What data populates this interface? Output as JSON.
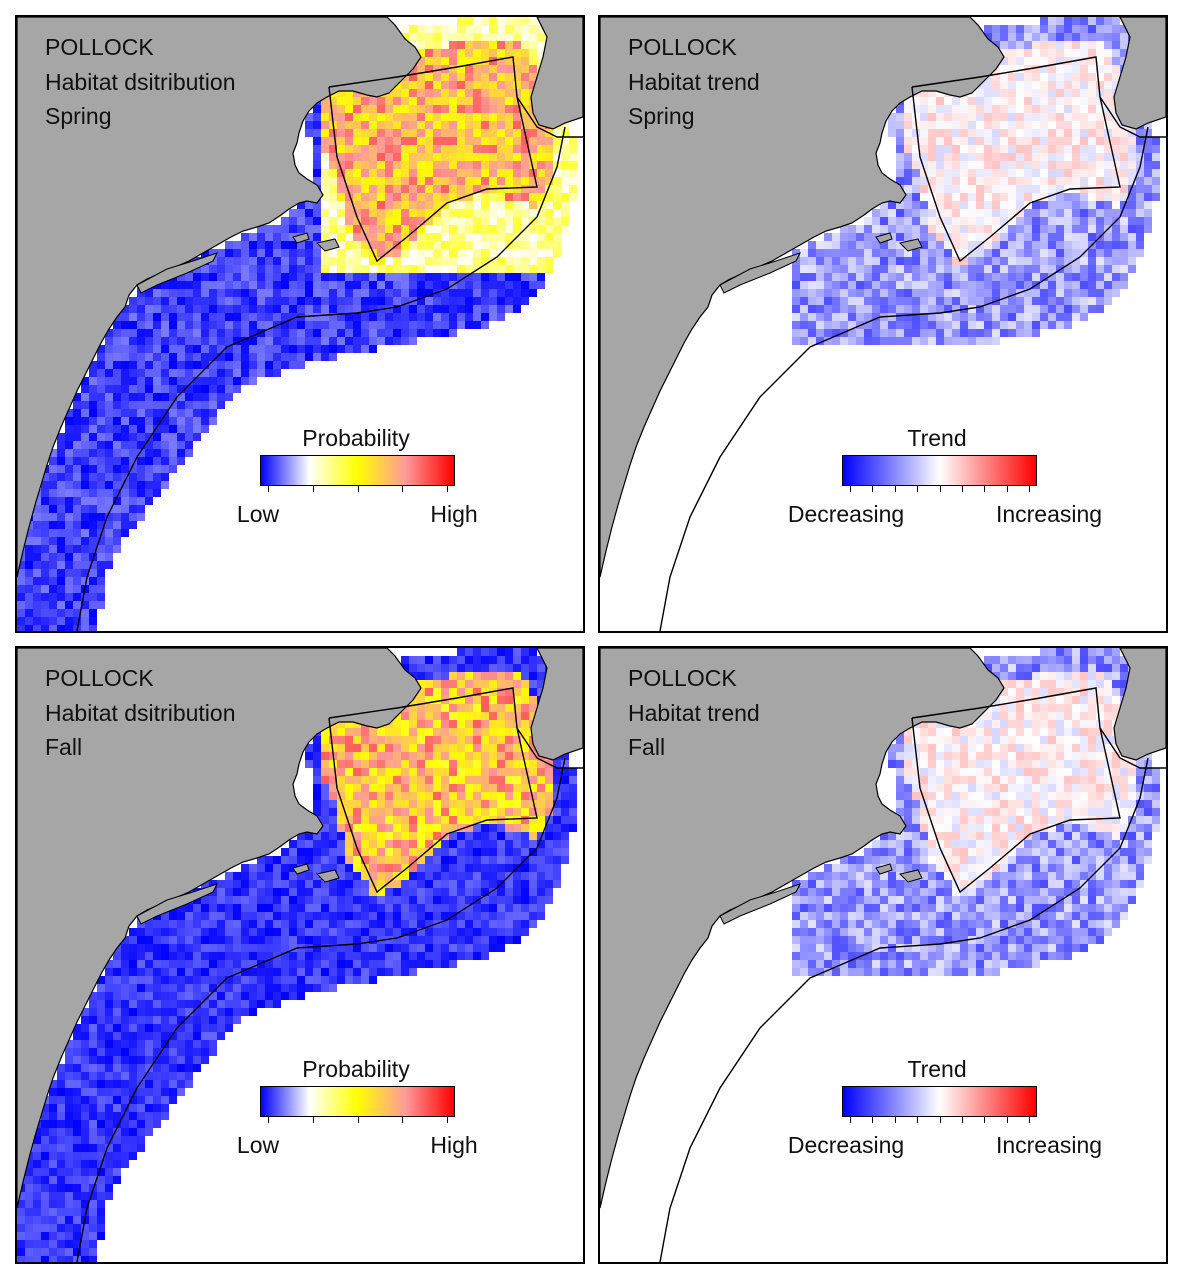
{
  "panels": [
    {
      "id": "p1",
      "species": "POLLOCK",
      "metric": "Habitat dsitribution",
      "season": "Spring",
      "legend": {
        "title": "Probability",
        "low": "Low",
        "high": "High",
        "scale": "probability"
      }
    },
    {
      "id": "p2",
      "species": "POLLOCK",
      "metric": "Habitat trend",
      "season": "Spring",
      "legend": {
        "title": "Trend",
        "low": "Decreasing",
        "high": "Increasing",
        "scale": "trend"
      }
    },
    {
      "id": "p3",
      "species": "POLLOCK",
      "metric": "Habitat dsitribution",
      "season": "Fall",
      "legend": {
        "title": "Probability",
        "low": "Low",
        "high": "High",
        "scale": "probability"
      }
    },
    {
      "id": "p4",
      "species": "POLLOCK",
      "metric": "Habitat trend",
      "season": "Fall",
      "legend": {
        "title": "Trend",
        "low": "Decreasing",
        "high": "Increasing",
        "scale": "trend"
      }
    }
  ],
  "colors": {
    "land": "#a6a6a6",
    "water": "#ffffff",
    "probability_ramp": [
      "#0000ff",
      "#ffffff",
      "#ffff00",
      "#ff9999",
      "#ff0000"
    ],
    "trend_ramp": [
      "#0000ff",
      "#ffffff",
      "#ff0000"
    ]
  }
}
